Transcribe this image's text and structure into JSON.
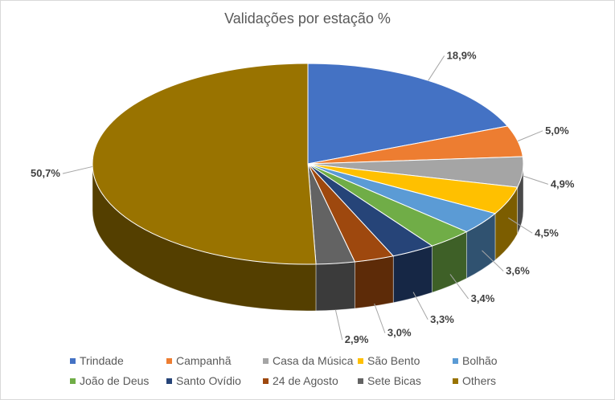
{
  "chart_data": {
    "type": "pie",
    "title": "Validações por estação %",
    "categories": [
      "Trindade",
      "Campanhã",
      "Casa da Música",
      "São Bento",
      "Bolhão",
      "João de Deus",
      "Santo Ovídio",
      "24 de Agosto",
      "Sete Bicas",
      "Others"
    ],
    "values": [
      18.9,
      5.0,
      4.9,
      4.5,
      3.6,
      3.4,
      3.3,
      3.0,
      2.9,
      50.7
    ],
    "data_labels": [
      "18,9%",
      "5,0%",
      "4,9%",
      "4,5%",
      "3,6%",
      "3,4%",
      "3,3%",
      "3,0%",
      "2,9%",
      "50,7%"
    ],
    "colors": [
      "#4472C4",
      "#ED7D31",
      "#A5A5A5",
      "#FFC000",
      "#5B9BD5",
      "#70AD47",
      "#264478",
      "#9E480E",
      "#636363",
      "#997300"
    ],
    "legend_position": "bottom",
    "style": "3d-pie"
  }
}
